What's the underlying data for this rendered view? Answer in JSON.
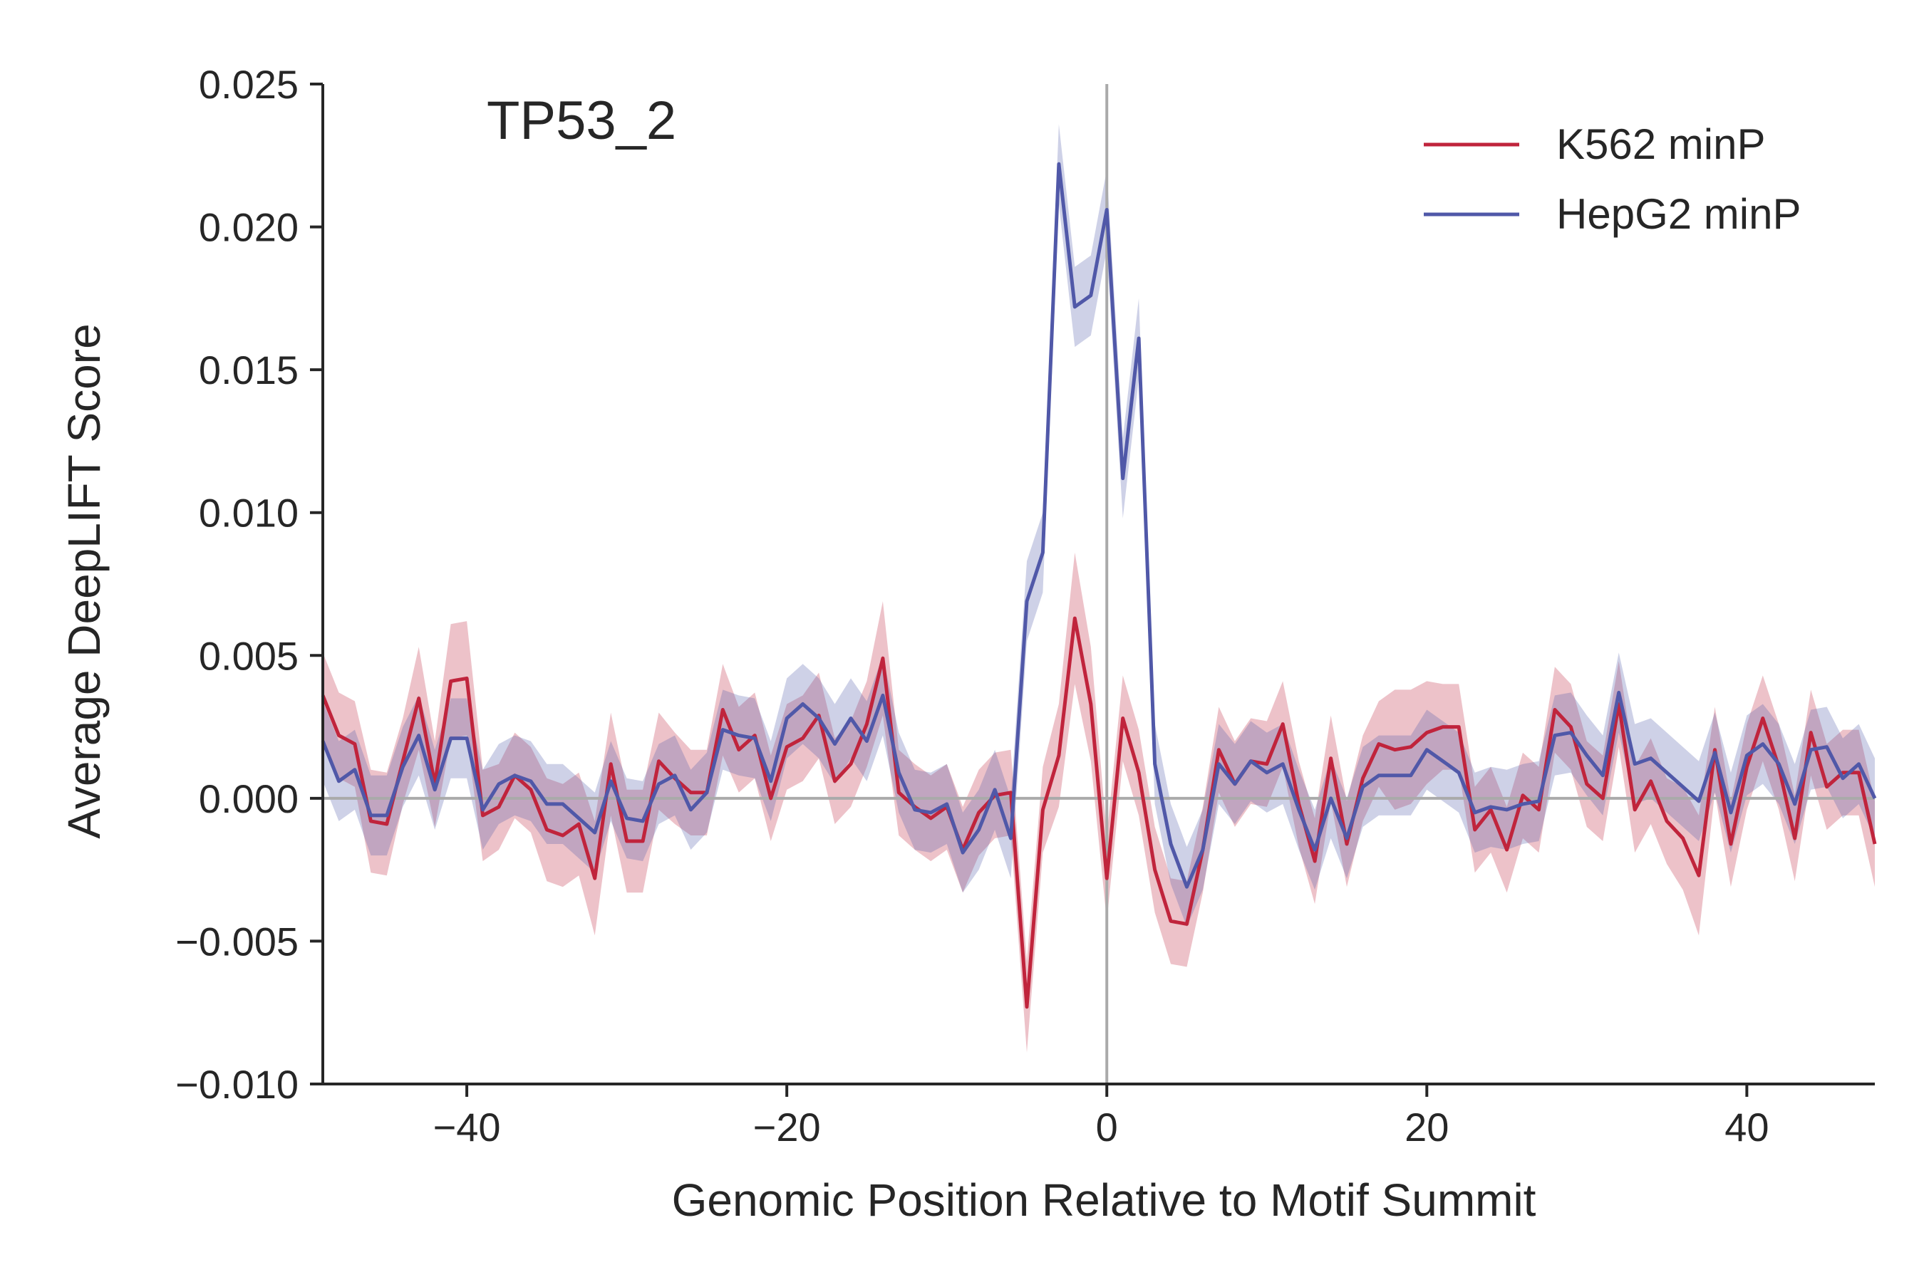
{
  "chart_data": {
    "type": "line",
    "title": "TP53_2",
    "xlabel": "Genomic Position Relative to Motif Summit",
    "ylabel": "Average DeepLIFT Score",
    "xlim": [
      -49,
      48
    ],
    "ylim": [
      -0.01,
      0.025
    ],
    "xticks": [
      -40,
      -20,
      0,
      20,
      40
    ],
    "xtick_labels": [
      "−40",
      "−20",
      "0",
      "20",
      "40"
    ],
    "yticks": [
      -0.01,
      -0.005,
      0.0,
      0.005,
      0.01,
      0.015,
      0.02,
      0.025
    ],
    "ytick_labels": [
      "−0.010",
      "−0.005",
      "0.000",
      "0.005",
      "0.010",
      "0.015",
      "0.020",
      "0.025"
    ],
    "reference_lines": {
      "horizontal": 0,
      "vertical": 0
    },
    "grid": false,
    "legend_position": "top-right",
    "x": [
      -49,
      -48,
      -47,
      -46,
      -45,
      -44,
      -43,
      -42,
      -41,
      -40,
      -39,
      -38,
      -37,
      -36,
      -35,
      -34,
      -33,
      -32,
      -31,
      -30,
      -29,
      -28,
      -27,
      -26,
      -25,
      -24,
      -23,
      -22,
      -21,
      -20,
      -19,
      -18,
      -17,
      -16,
      -15,
      -14,
      -13,
      -12,
      -11,
      -10,
      -9,
      -8,
      -7,
      -6,
      -5,
      -4,
      -3,
      -2,
      -1,
      0,
      1,
      2,
      3,
      4,
      5,
      6,
      7,
      8,
      9,
      10,
      11,
      12,
      13,
      14,
      15,
      16,
      17,
      18,
      19,
      20,
      21,
      22,
      23,
      24,
      25,
      26,
      27,
      28,
      29,
      30,
      31,
      32,
      33,
      34,
      35,
      36,
      37,
      38,
      39,
      40,
      41,
      42,
      43,
      44,
      45,
      46,
      47,
      48
    ],
    "series": [
      {
        "name": "K562 minP",
        "color": "#c0243c",
        "values": [
          0.0036,
          0.0022,
          0.0019,
          -0.0008,
          -0.0009,
          0.0013,
          0.0035,
          0.0005,
          0.0041,
          0.0042,
          -0.0006,
          -0.0003,
          0.0008,
          0.0003,
          -0.0011,
          -0.0013,
          -0.0009,
          -0.0028,
          0.0012,
          -0.0015,
          -0.0015,
          0.0013,
          0.0007,
          0.0002,
          0.0002,
          0.0031,
          0.0017,
          0.0022,
          0.0,
          0.0018,
          0.0021,
          0.0029,
          0.0006,
          0.0012,
          0.0026,
          0.0049,
          0.0002,
          -0.0003,
          -0.0007,
          -0.0003,
          -0.0018,
          -0.0005,
          0.0001,
          0.0002,
          -0.0073,
          -0.0004,
          0.0015,
          0.0063,
          0.0033,
          -0.0028,
          0.0028,
          0.0009,
          -0.0025,
          -0.0043,
          -0.0044,
          -0.0018,
          0.0017,
          0.0005,
          0.0013,
          0.0012,
          0.0026,
          -0.0002,
          -0.0022,
          0.0014,
          -0.0016,
          0.0007,
          0.0019,
          0.0017,
          0.0018,
          0.0023,
          0.0025,
          0.0025,
          -0.0011,
          -0.0004,
          -0.0018,
          0.0001,
          -0.0004,
          0.0031,
          0.0025,
          0.0005,
          0.0,
          0.0033,
          -0.0004,
          0.0006,
          -0.0008,
          -0.0014,
          -0.0027,
          0.0017,
          -0.0016,
          0.0011,
          0.0028,
          0.0011,
          -0.0014,
          0.0023,
          0.0004,
          0.0009,
          0.0009,
          -0.0016
        ],
        "ci_halfwidth": [
          0.0015,
          0.0015,
          0.0015,
          0.0018,
          0.0018,
          0.0015,
          0.0018,
          0.0015,
          0.002,
          0.002,
          0.0016,
          0.0015,
          0.0015,
          0.0015,
          0.0018,
          0.0018,
          0.0018,
          0.002,
          0.0018,
          0.0018,
          0.0018,
          0.0017,
          0.0016,
          0.0015,
          0.0015,
          0.0016,
          0.0015,
          0.0015,
          0.0015,
          0.0015,
          0.0015,
          0.0015,
          0.0015,
          0.0015,
          0.0015,
          0.002,
          0.0015,
          0.0015,
          0.0015,
          0.0015,
          0.0015,
          0.0015,
          0.0015,
          0.0015,
          0.0016,
          0.0015,
          0.0018,
          0.0023,
          0.002,
          0.0015,
          0.0015,
          0.0015,
          0.0015,
          0.0015,
          0.0015,
          0.0015,
          0.0015,
          0.0015,
          0.0015,
          0.0015,
          0.0015,
          0.0015,
          0.0015,
          0.0015,
          0.0015,
          0.0015,
          0.0015,
          0.0021,
          0.002,
          0.0018,
          0.0015,
          0.0015,
          0.0015,
          0.0015,
          0.0015,
          0.0015,
          0.0015,
          0.0015,
          0.0015,
          0.0015,
          0.0015,
          0.0015,
          0.0015,
          0.0015,
          0.0015,
          0.0018,
          0.0021,
          0.0015,
          0.0015,
          0.0015,
          0.0015,
          0.0015,
          0.0015,
          0.0015,
          0.0015,
          0.0015,
          0.0015,
          0.0015
        ]
      },
      {
        "name": "HepG2 minP",
        "color": "#5058a8",
        "values": [
          0.002,
          0.0006,
          0.001,
          -0.0006,
          -0.0006,
          0.0011,
          0.0022,
          0.0003,
          0.0021,
          0.0021,
          -0.0004,
          0.0005,
          0.0008,
          0.0006,
          -0.0002,
          -0.0002,
          -0.0007,
          -0.0012,
          0.0006,
          -0.0007,
          -0.0008,
          0.0005,
          0.0008,
          -0.0004,
          0.0002,
          0.0024,
          0.0022,
          0.0021,
          0.0006,
          0.0028,
          0.0033,
          0.0028,
          0.0019,
          0.0028,
          0.002,
          0.0036,
          0.0009,
          -0.0004,
          -0.0005,
          -0.0002,
          -0.0019,
          -0.0011,
          0.0003,
          -0.0014,
          0.0069,
          0.0086,
          0.0222,
          0.0172,
          0.0176,
          0.0206,
          0.0112,
          0.0161,
          0.0012,
          -0.0016,
          -0.0031,
          -0.0018,
          0.0012,
          0.0005,
          0.0013,
          0.0009,
          0.0012,
          -0.0004,
          -0.0018,
          0.0,
          -0.0014,
          0.0004,
          0.0008,
          0.0008,
          0.0008,
          0.0017,
          0.0013,
          0.0009,
          -0.0005,
          -0.0003,
          -0.0004,
          -0.0002,
          -0.0001,
          0.0022,
          0.0023,
          0.0015,
          0.0008,
          0.0037,
          0.0012,
          0.0014,
          0.0009,
          0.0004,
          -0.0001,
          0.0016,
          -0.0005,
          0.0015,
          0.0019,
          0.0012,
          -0.0002,
          0.0017,
          0.0018,
          0.0007,
          0.0012,
          0.0
        ]
      }
    ]
  }
}
